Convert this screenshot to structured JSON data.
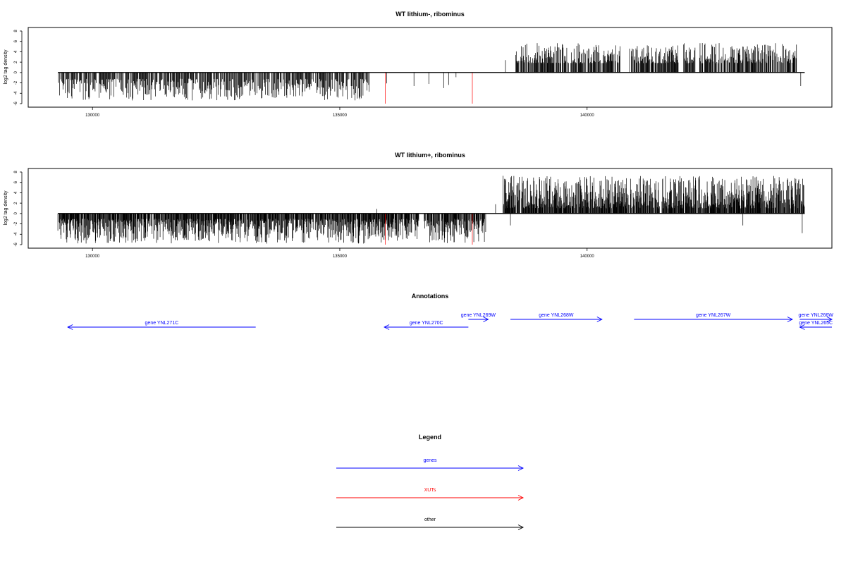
{
  "chart_data": [
    {
      "type": "bar",
      "title": "WT lithium-, ribominus",
      "ylabel": "log2 tag density",
      "xlabel": "",
      "xlim": [
        128700,
        144950
      ],
      "ylim": [
        -6,
        8
      ],
      "yticks": [
        -6,
        -4,
        -2,
        0,
        2,
        4,
        6,
        8
      ],
      "xticks": [
        "130000",
        "135000",
        "140000"
      ],
      "xtick_values": [
        130000,
        135000,
        140000
      ],
      "baseline": [
        129300,
        144400
      ],
      "regions": [
        {
          "name": "minus-strand",
          "x_range": [
            129300,
            135600
          ],
          "sign": -1,
          "min_abs": 1.2,
          "max_abs": 5.4,
          "density": 1.25,
          "seed": 11
        },
        {
          "name": "gap-bars",
          "x_values": [
            135950,
            136500,
            136800,
            137100,
            137200,
            137350
          ],
          "y_values": [
            -2.1,
            -2.6,
            -2.2,
            -3.0,
            -2.4,
            -0.9
          ]
        },
        {
          "name": "plus-strand",
          "x_range": [
            138550,
            144250
          ],
          "sign": 1,
          "min_abs": 1.8,
          "max_abs": 5.7,
          "density": 1.55,
          "seed": 23
        }
      ],
      "gaps": [
        [
          140700,
          140850
        ],
        [
          141850,
          141950
        ],
        [
          142200,
          142270
        ]
      ],
      "extra_bars": [
        {
          "x": 138350,
          "y": 2.4
        },
        {
          "x": 144320,
          "y": -2.6
        }
      ],
      "highlight_bars": {
        "color": "#ff0000",
        "x_values": [
          135920,
          137680
        ],
        "y_values": [
          -6.0,
          -6.0
        ]
      }
    },
    {
      "type": "bar",
      "title": "WT lithium+, ribominus",
      "ylabel": "log2 tag density",
      "xlabel": "",
      "xlim": [
        128700,
        144950
      ],
      "ylim": [
        -6,
        8
      ],
      "yticks": [
        -6,
        -4,
        -2,
        0,
        2,
        4,
        6,
        8
      ],
      "xticks": [
        "130000",
        "135000",
        "140000"
      ],
      "xtick_values": [
        130000,
        135000,
        140000
      ],
      "baseline": [
        129300,
        144400
      ],
      "regions": [
        {
          "name": "minus-strand",
          "x_range": [
            129300,
            137950
          ],
          "sign": -1,
          "min_abs": 1.0,
          "max_abs": 5.8,
          "density": 2.2,
          "seed": 37
        },
        {
          "name": "plus-strand",
          "x_range": [
            138300,
            144400
          ],
          "sign": 1,
          "min_abs": 1.0,
          "max_abs": 7.3,
          "density": 2.4,
          "seed": 41
        }
      ],
      "gaps": [
        [
          136600,
          136700
        ]
      ],
      "extra_bars": [
        {
          "x": 138150,
          "y": 1.8
        },
        {
          "x": 138450,
          "y": -2.3
        },
        {
          "x": 143150,
          "y": -2.3
        },
        {
          "x": 144350,
          "y": -3.8
        },
        {
          "x": 135750,
          "y": 0.9
        }
      ],
      "highlight_bars": {
        "color": "#ff0000",
        "x_values": [
          135920,
          137680
        ],
        "y_values": [
          -6.0,
          -6.0
        ]
      }
    }
  ],
  "annotations": {
    "title": "Annotations",
    "genes": [
      {
        "label": "gene YNL271C",
        "from": 133300,
        "to": 129500,
        "row": 2,
        "color": "#0000ff"
      },
      {
        "label": "gene YNL270C",
        "from": 137600,
        "to": 135900,
        "row": 2,
        "color": "#0000ff"
      },
      {
        "label": "gene YNL269W",
        "from": 137600,
        "to": 138000,
        "row": 1,
        "color": "#0000ff"
      },
      {
        "label": "gene YNL268W",
        "from": 138450,
        "to": 140300,
        "row": 1,
        "color": "#0000ff"
      },
      {
        "label": "gene YNL267W",
        "from": 140950,
        "to": 144150,
        "row": 1,
        "color": "#0000ff"
      },
      {
        "label": "gene YNL266W",
        "from": 144300,
        "to": 144950,
        "row": 1,
        "color": "#0000ff"
      },
      {
        "label": "gene YNL265C",
        "from": 144950,
        "to": 144300,
        "row": 2,
        "color": "#0000ff"
      }
    ]
  },
  "legend": {
    "title": "Legend",
    "items": [
      {
        "label": "genes",
        "color": "#0000ff"
      },
      {
        "label": "XUTs",
        "color": "#ff0000"
      },
      {
        "label": "other",
        "color": "#000000"
      }
    ]
  }
}
